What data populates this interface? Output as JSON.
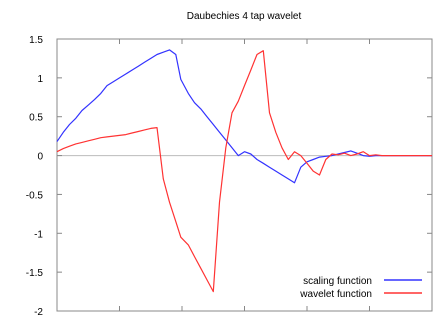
{
  "chart_data": {
    "type": "line",
    "title": "Daubechies 4 tap wavelet",
    "xlabel": "",
    "ylabel": "",
    "xlim": [
      0,
      3
    ],
    "ylim": [
      -2,
      1.5
    ],
    "y_ticks": [
      -2,
      -1.5,
      -1,
      -0.5,
      0,
      0.5,
      1,
      1.5
    ],
    "y_tick_labels": [
      "-2",
      "-1.5",
      "-1",
      "-0.5",
      "0",
      "0.5",
      "1",
      "1.5"
    ],
    "x_ticks": [
      0,
      0.5,
      1,
      1.5,
      2,
      2.5,
      3
    ],
    "x_tick_labels": [],
    "zero_line": true,
    "legend_position": "bottom-right",
    "series": [
      {
        "name": "scaling function",
        "color": "#3333ff",
        "x": [
          0,
          0.05,
          0.1,
          0.15,
          0.2,
          0.25,
          0.3,
          0.35,
          0.4,
          0.45,
          0.5,
          0.55,
          0.6,
          0.65,
          0.7,
          0.75,
          0.8,
          0.85,
          0.9,
          0.95,
          0.99,
          1.05,
          1.1,
          1.15,
          1.2,
          1.25,
          1.3,
          1.35,
          1.4,
          1.45,
          1.5,
          1.55,
          1.6,
          1.65,
          1.7,
          1.75,
          1.8,
          1.85,
          1.9,
          1.95,
          2.0,
          2.05,
          2.1,
          2.15,
          2.2,
          2.25,
          2.3,
          2.35,
          2.4,
          2.45,
          2.5,
          2.55,
          2.6,
          2.65,
          2.7,
          2.75,
          2.8,
          2.85,
          2.9,
          2.95,
          3.0
        ],
        "y": [
          0.18,
          0.3,
          0.4,
          0.48,
          0.58,
          0.65,
          0.72,
          0.8,
          0.9,
          0.95,
          1.0,
          1.05,
          1.1,
          1.15,
          1.2,
          1.25,
          1.3,
          1.33,
          1.36,
          1.3,
          0.98,
          0.8,
          0.68,
          0.6,
          0.5,
          0.4,
          0.3,
          0.2,
          0.1,
          0.0,
          0.05,
          0.02,
          -0.05,
          -0.1,
          -0.15,
          -0.2,
          -0.25,
          -0.3,
          -0.35,
          -0.15,
          -0.08,
          -0.05,
          -0.02,
          -0.01,
          0.0,
          0.02,
          0.04,
          0.06,
          0.03,
          0.0,
          -0.01,
          0.0,
          0.0,
          0.0,
          0.0,
          0.0,
          0.0,
          0.0,
          0.0,
          0.0,
          0.0
        ]
      },
      {
        "name": "wavelet function",
        "color": "#ff3333",
        "x": [
          0,
          0.05,
          0.1,
          0.15,
          0.2,
          0.25,
          0.3,
          0.35,
          0.4,
          0.45,
          0.5,
          0.55,
          0.6,
          0.65,
          0.7,
          0.75,
          0.8,
          0.85,
          0.9,
          0.95,
          0.99,
          1.05,
          1.1,
          1.15,
          1.2,
          1.25,
          1.3,
          1.35,
          1.4,
          1.45,
          1.5,
          1.55,
          1.6,
          1.65,
          1.7,
          1.75,
          1.8,
          1.85,
          1.9,
          1.95,
          2.0,
          2.05,
          2.1,
          2.15,
          2.2,
          2.25,
          2.3,
          2.35,
          2.4,
          2.45,
          2.5,
          2.55,
          2.6,
          2.65,
          2.7,
          2.75,
          2.8,
          2.85,
          2.9,
          2.95,
          3.0
        ],
        "y": [
          0.05,
          0.09,
          0.12,
          0.15,
          0.17,
          0.19,
          0.21,
          0.23,
          0.24,
          0.25,
          0.26,
          0.27,
          0.29,
          0.31,
          0.33,
          0.35,
          0.36,
          -0.3,
          -0.6,
          -0.85,
          -1.05,
          -1.15,
          -1.3,
          -1.45,
          -1.6,
          -1.75,
          -0.6,
          0.1,
          0.55,
          0.7,
          0.9,
          1.1,
          1.3,
          1.35,
          0.55,
          0.3,
          0.1,
          -0.05,
          0.05,
          0.0,
          -0.1,
          -0.2,
          -0.25,
          -0.05,
          0.02,
          0.01,
          0.03,
          0.0,
          0.02,
          0.05,
          0.0,
          0.01,
          0.0,
          0.0,
          0.0,
          0.0,
          0.0,
          0.0,
          0.0,
          0.0,
          0.0
        ]
      }
    ]
  }
}
